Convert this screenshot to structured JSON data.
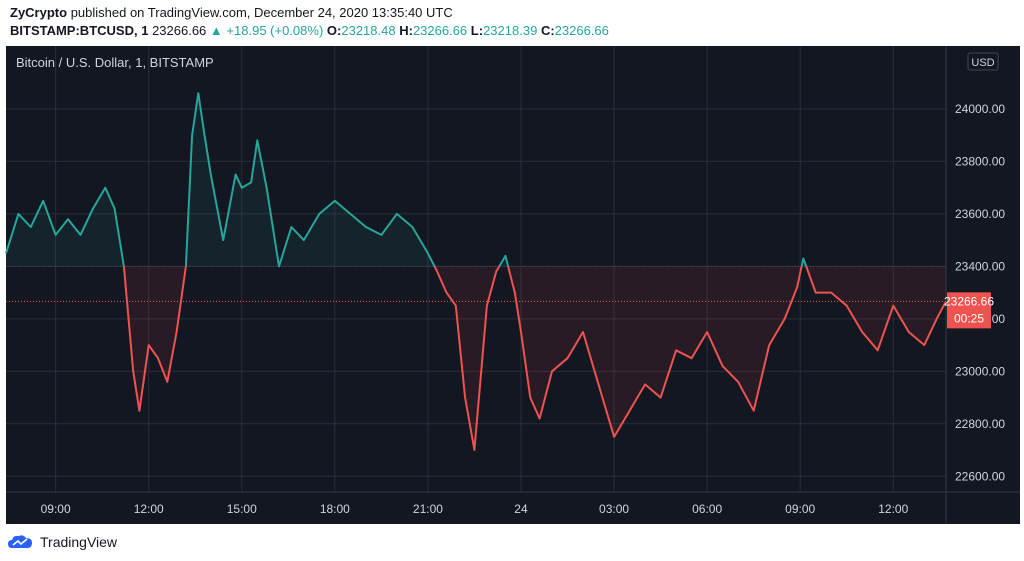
{
  "header": {
    "author": "ZyCrypto",
    "published_text": "published on TradingView.com, December 24, 2020 13:35:40 UTC",
    "symbol": "BITSTAMP:BTCUSD, 1",
    "last": "23266.66",
    "change": "+18.95 (+0.08%)",
    "o_label": "O:",
    "o": "23218.48",
    "h_label": "H:",
    "h": "23266.66",
    "l_label": "L:",
    "l": "23218.39",
    "c_label": "C:",
    "c": "23266.66"
  },
  "colors": {
    "up": "#26a69a",
    "down": "#ef5350",
    "background": "#131722",
    "grid": "#2a2e39",
    "axis_text": "#d1d4dc"
  },
  "chart_data": {
    "type": "area",
    "title": "Bitcoin / U.S. Dollar, 1, BITSTAMP",
    "currency_badge": "USD",
    "baseline": 23400,
    "last_price_label": "23266.66",
    "countdown_label": "00:25",
    "x_ticks": [
      "09:00",
      "12:00",
      "15:00",
      "18:00",
      "21:00",
      "24",
      "03:00",
      "06:00",
      "09:00",
      "12:00"
    ],
    "x_tick_hours": [
      9,
      12,
      15,
      18,
      21,
      24,
      27,
      30,
      33,
      36
    ],
    "y_ticks": [
      "22600.00",
      "22800.00",
      "23000.00",
      "23200.00",
      "23400.00",
      "23600.00",
      "23800.00",
      "24000.00"
    ],
    "y_tick_values": [
      22600,
      22800,
      23000,
      23200,
      23400,
      23600,
      23800,
      24000
    ],
    "ylim": [
      22540,
      24240
    ],
    "xlim_hours": [
      7.4,
      37.7
    ],
    "grid": true,
    "series": [
      {
        "x_hours": [
          7.4,
          7.8,
          8.2,
          8.6,
          9.0,
          9.4,
          9.8,
          10.2,
          10.6,
          10.9,
          11.2,
          11.5,
          11.7,
          12.0,
          12.3,
          12.6,
          12.9,
          13.2,
          13.4,
          13.6,
          13.8,
          14.0,
          14.4,
          14.8,
          15.0,
          15.3,
          15.5,
          15.8,
          16.2,
          16.6,
          17.0,
          17.5,
          18.0,
          18.5,
          19.0,
          19.5,
          20.0,
          20.5,
          21.0,
          21.3,
          21.6,
          21.9,
          22.2,
          22.5,
          22.9,
          23.2,
          23.5,
          23.8,
          24.0,
          24.3,
          24.6,
          25.0,
          25.5,
          26.0,
          26.5,
          27.0,
          27.5,
          28.0,
          28.5,
          29.0,
          29.5,
          30.0,
          30.5,
          31.0,
          31.5,
          32.0,
          32.5,
          32.9,
          33.1,
          33.5,
          34.0,
          34.5,
          35.0,
          35.5,
          36.0,
          36.5,
          37.0,
          37.4,
          37.7
        ],
        "values": [
          23450,
          23600,
          23550,
          23650,
          23520,
          23580,
          23520,
          23620,
          23700,
          23620,
          23400,
          23000,
          22850,
          23100,
          23050,
          22960,
          23150,
          23400,
          23900,
          24060,
          23900,
          23750,
          23500,
          23750,
          23700,
          23720,
          23880,
          23700,
          23400,
          23550,
          23500,
          23600,
          23650,
          23600,
          23550,
          23520,
          23600,
          23550,
          23450,
          23380,
          23300,
          23250,
          22900,
          22700,
          23250,
          23380,
          23440,
          23300,
          23150,
          22900,
          22820,
          23000,
          23050,
          23150,
          22950,
          22750,
          22850,
          22950,
          22900,
          23080,
          23050,
          23150,
          23020,
          22960,
          22850,
          23100,
          23200,
          23320,
          23430,
          23300,
          23300,
          23250,
          23150,
          23080,
          23250,
          23150,
          23100,
          23200,
          23266.66
        ]
      }
    ]
  }
}
